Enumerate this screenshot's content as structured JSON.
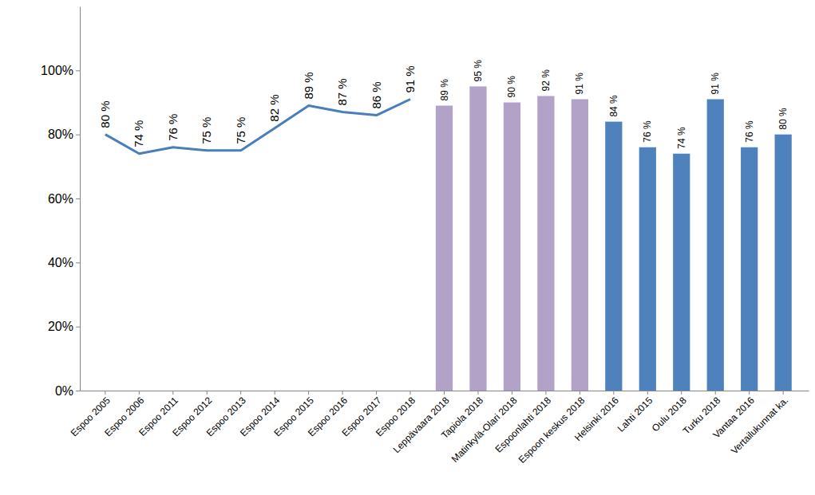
{
  "chart_data": {
    "type": "bar",
    "categories": [
      "Espoo 2005",
      "Espoo 2006",
      "Espoo 2011",
      "Espoo 2012",
      "Espoo 2013",
      "Espoo 2014",
      "Espoo 2015",
      "Espoo 2016",
      "Espoo 2017",
      "Espoo 2018",
      "Leppävaara 2018",
      "Tapiola 2018",
      "Matinkylä-Olari 2018",
      "Espoonlahti 2018",
      "Espoon keskus 2018",
      "Helsinki 2016",
      "Lahti 2015",
      "Oulu 2018",
      "Turku 2018",
      "Vantaa 2016",
      "Vertailukunnat ka."
    ],
    "series": [
      {
        "type": "line",
        "color": "#4a7ebb",
        "values": [
          80,
          74,
          76,
          75,
          75,
          82,
          89,
          87,
          86,
          91,
          null,
          null,
          null,
          null,
          null,
          null,
          null,
          null,
          null,
          null,
          null
        ],
        "value_labels": [
          "80 %",
          "74 %",
          "76 %",
          "75 %",
          "75 %",
          "82 %",
          "89 %",
          "87 %",
          "86 %",
          "91 %",
          null,
          null,
          null,
          null,
          null,
          null,
          null,
          null,
          null,
          null,
          null
        ]
      },
      {
        "type": "bar",
        "color": "#b3a2c7",
        "values": [
          null,
          null,
          null,
          null,
          null,
          null,
          null,
          null,
          null,
          null,
          89,
          95,
          90,
          92,
          91,
          null,
          null,
          null,
          null,
          null,
          null
        ],
        "value_labels": [
          null,
          null,
          null,
          null,
          null,
          null,
          null,
          null,
          null,
          null,
          "89 %",
          "95 %",
          "90 %",
          "92 %",
          "91 %",
          null,
          null,
          null,
          null,
          null,
          null
        ]
      },
      {
        "type": "bar",
        "color": "#4f81bd",
        "values": [
          null,
          null,
          null,
          null,
          null,
          null,
          null,
          null,
          null,
          null,
          null,
          null,
          null,
          null,
          null,
          84,
          76,
          74,
          91,
          76,
          80
        ],
        "value_labels": [
          null,
          null,
          null,
          null,
          null,
          null,
          null,
          null,
          null,
          null,
          null,
          null,
          null,
          null,
          null,
          "84 %",
          "76 %",
          "74 %",
          "91 %",
          "76 %",
          "80 %"
        ]
      }
    ],
    "ylim": [
      0,
      120
    ],
    "yticks": [
      {
        "value": 0,
        "label": "0%"
      },
      {
        "value": 20,
        "label": "20%"
      },
      {
        "value": 40,
        "label": "40%"
      },
      {
        "value": 60,
        "label": "60%"
      },
      {
        "value": 80,
        "label": "80%"
      },
      {
        "value": 100,
        "label": "100%"
      }
    ],
    "grid": false,
    "data_labels": true
  }
}
